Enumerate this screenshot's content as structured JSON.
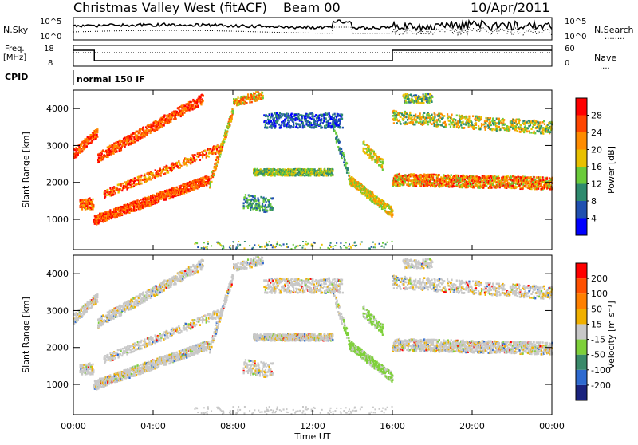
{
  "header": {
    "title": "Christmas Valley West (fitACF)",
    "beam": "Beam 00",
    "date": "10/Apr/2011"
  },
  "noise_panel": {
    "left_label": "N.Sky",
    "right_label": "N.Search",
    "left_top_tick": "10^5",
    "left_bottom_tick": "10^0",
    "right_top_tick": "10^5",
    "right_bottom_tick": "10^0",
    "right_legend_dots": "........"
  },
  "freq_panel": {
    "left_label_1": "Freq.",
    "left_label_2": "[MHz]",
    "right_label": "Nave",
    "left_top_tick": "18",
    "left_bottom_tick": "8",
    "right_top_tick": "60",
    "right_bottom_tick": "0",
    "right_legend_dots": "...."
  },
  "cpid_panel": {
    "label": "CPID",
    "mode": "normal 150 IF"
  },
  "x_axis": {
    "label": "Time UT",
    "ticks": [
      "00:00",
      "04:00",
      "08:00",
      "12:00",
      "16:00",
      "20:00",
      "00:00"
    ]
  },
  "chart_data": [
    {
      "type": "heatmap",
      "name": "power",
      "ylabel": "Slant Range [km]",
      "yticks": [
        "1000",
        "2000",
        "3000",
        "4000"
      ],
      "ylim": [
        180,
        4500
      ],
      "xlim_hours": [
        0,
        24
      ],
      "colorbar": {
        "label": "Power [dB]",
        "ticks": [
          "4",
          "8",
          "12",
          "16",
          "20",
          "24",
          "28"
        ],
        "colors": [
          "#0000ff",
          "#2050b0",
          "#2e8a6e",
          "#6acb3a",
          "#e8c000",
          "#ff8c00",
          "#ff4500",
          "#ff0000"
        ]
      }
    },
    {
      "type": "heatmap",
      "name": "velocity",
      "ylabel": "Slant Range [km]",
      "yticks": [
        "1000",
        "2000",
        "3000",
        "4000"
      ],
      "ylim": [
        180,
        4500
      ],
      "xlim_hours": [
        0,
        24
      ],
      "colorbar": {
        "label": "Velocity [m s⁻¹]",
        "ticks": [
          "200",
          "100",
          "50",
          "15",
          "-15",
          "-50",
          "-100",
          "-200"
        ],
        "colors": [
          "#1a237e",
          "#2e6ad0",
          "#3a8a6a",
          "#7ed03a",
          "#c8c8c8",
          "#f0b000",
          "#ff8000",
          "#ff5000",
          "#ff0000"
        ]
      }
    }
  ]
}
